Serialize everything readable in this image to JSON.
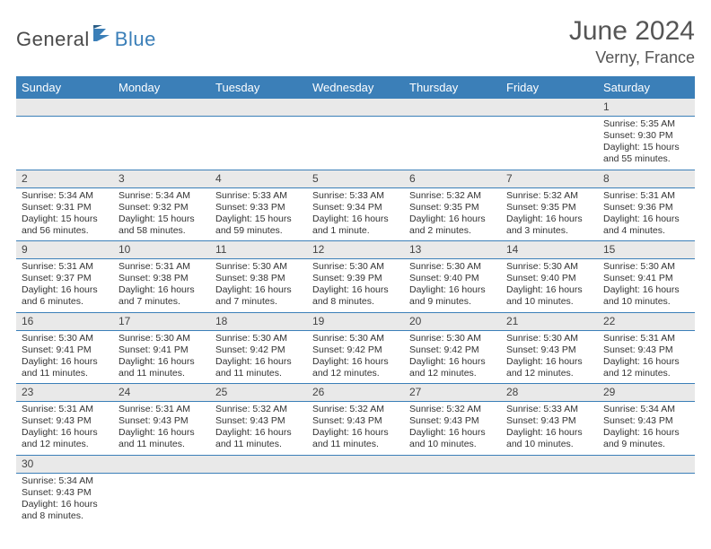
{
  "brand": {
    "part1": "General",
    "part2": "Blue"
  },
  "title": "June 2024",
  "location": "Verny, France",
  "colors": {
    "header_bg": "#3b7fb8",
    "header_fg": "#ffffff",
    "daynum_bg": "#e9e9e9",
    "border": "#3b7fb8",
    "text": "#333333",
    "background": "#ffffff"
  },
  "weekdays": [
    "Sunday",
    "Monday",
    "Tuesday",
    "Wednesday",
    "Thursday",
    "Friday",
    "Saturday"
  ],
  "weeks": [
    {
      "days": [
        {
          "empty": true
        },
        {
          "empty": true
        },
        {
          "empty": true
        },
        {
          "empty": true
        },
        {
          "empty": true
        },
        {
          "empty": true
        },
        {
          "num": "1",
          "sunrise": "Sunrise: 5:35 AM",
          "sunset": "Sunset: 9:30 PM",
          "daylight": "Daylight: 15 hours and 55 minutes."
        }
      ]
    },
    {
      "days": [
        {
          "num": "2",
          "sunrise": "Sunrise: 5:34 AM",
          "sunset": "Sunset: 9:31 PM",
          "daylight": "Daylight: 15 hours and 56 minutes."
        },
        {
          "num": "3",
          "sunrise": "Sunrise: 5:34 AM",
          "sunset": "Sunset: 9:32 PM",
          "daylight": "Daylight: 15 hours and 58 minutes."
        },
        {
          "num": "4",
          "sunrise": "Sunrise: 5:33 AM",
          "sunset": "Sunset: 9:33 PM",
          "daylight": "Daylight: 15 hours and 59 minutes."
        },
        {
          "num": "5",
          "sunrise": "Sunrise: 5:33 AM",
          "sunset": "Sunset: 9:34 PM",
          "daylight": "Daylight: 16 hours and 1 minute."
        },
        {
          "num": "6",
          "sunrise": "Sunrise: 5:32 AM",
          "sunset": "Sunset: 9:35 PM",
          "daylight": "Daylight: 16 hours and 2 minutes."
        },
        {
          "num": "7",
          "sunrise": "Sunrise: 5:32 AM",
          "sunset": "Sunset: 9:35 PM",
          "daylight": "Daylight: 16 hours and 3 minutes."
        },
        {
          "num": "8",
          "sunrise": "Sunrise: 5:31 AM",
          "sunset": "Sunset: 9:36 PM",
          "daylight": "Daylight: 16 hours and 4 minutes."
        }
      ]
    },
    {
      "days": [
        {
          "num": "9",
          "sunrise": "Sunrise: 5:31 AM",
          "sunset": "Sunset: 9:37 PM",
          "daylight": "Daylight: 16 hours and 6 minutes."
        },
        {
          "num": "10",
          "sunrise": "Sunrise: 5:31 AM",
          "sunset": "Sunset: 9:38 PM",
          "daylight": "Daylight: 16 hours and 7 minutes."
        },
        {
          "num": "11",
          "sunrise": "Sunrise: 5:30 AM",
          "sunset": "Sunset: 9:38 PM",
          "daylight": "Daylight: 16 hours and 7 minutes."
        },
        {
          "num": "12",
          "sunrise": "Sunrise: 5:30 AM",
          "sunset": "Sunset: 9:39 PM",
          "daylight": "Daylight: 16 hours and 8 minutes."
        },
        {
          "num": "13",
          "sunrise": "Sunrise: 5:30 AM",
          "sunset": "Sunset: 9:40 PM",
          "daylight": "Daylight: 16 hours and 9 minutes."
        },
        {
          "num": "14",
          "sunrise": "Sunrise: 5:30 AM",
          "sunset": "Sunset: 9:40 PM",
          "daylight": "Daylight: 16 hours and 10 minutes."
        },
        {
          "num": "15",
          "sunrise": "Sunrise: 5:30 AM",
          "sunset": "Sunset: 9:41 PM",
          "daylight": "Daylight: 16 hours and 10 minutes."
        }
      ]
    },
    {
      "days": [
        {
          "num": "16",
          "sunrise": "Sunrise: 5:30 AM",
          "sunset": "Sunset: 9:41 PM",
          "daylight": "Daylight: 16 hours and 11 minutes."
        },
        {
          "num": "17",
          "sunrise": "Sunrise: 5:30 AM",
          "sunset": "Sunset: 9:41 PM",
          "daylight": "Daylight: 16 hours and 11 minutes."
        },
        {
          "num": "18",
          "sunrise": "Sunrise: 5:30 AM",
          "sunset": "Sunset: 9:42 PM",
          "daylight": "Daylight: 16 hours and 11 minutes."
        },
        {
          "num": "19",
          "sunrise": "Sunrise: 5:30 AM",
          "sunset": "Sunset: 9:42 PM",
          "daylight": "Daylight: 16 hours and 12 minutes."
        },
        {
          "num": "20",
          "sunrise": "Sunrise: 5:30 AM",
          "sunset": "Sunset: 9:42 PM",
          "daylight": "Daylight: 16 hours and 12 minutes."
        },
        {
          "num": "21",
          "sunrise": "Sunrise: 5:30 AM",
          "sunset": "Sunset: 9:43 PM",
          "daylight": "Daylight: 16 hours and 12 minutes."
        },
        {
          "num": "22",
          "sunrise": "Sunrise: 5:31 AM",
          "sunset": "Sunset: 9:43 PM",
          "daylight": "Daylight: 16 hours and 12 minutes."
        }
      ]
    },
    {
      "days": [
        {
          "num": "23",
          "sunrise": "Sunrise: 5:31 AM",
          "sunset": "Sunset: 9:43 PM",
          "daylight": "Daylight: 16 hours and 12 minutes."
        },
        {
          "num": "24",
          "sunrise": "Sunrise: 5:31 AM",
          "sunset": "Sunset: 9:43 PM",
          "daylight": "Daylight: 16 hours and 11 minutes."
        },
        {
          "num": "25",
          "sunrise": "Sunrise: 5:32 AM",
          "sunset": "Sunset: 9:43 PM",
          "daylight": "Daylight: 16 hours and 11 minutes."
        },
        {
          "num": "26",
          "sunrise": "Sunrise: 5:32 AM",
          "sunset": "Sunset: 9:43 PM",
          "daylight": "Daylight: 16 hours and 11 minutes."
        },
        {
          "num": "27",
          "sunrise": "Sunrise: 5:32 AM",
          "sunset": "Sunset: 9:43 PM",
          "daylight": "Daylight: 16 hours and 10 minutes."
        },
        {
          "num": "28",
          "sunrise": "Sunrise: 5:33 AM",
          "sunset": "Sunset: 9:43 PM",
          "daylight": "Daylight: 16 hours and 10 minutes."
        },
        {
          "num": "29",
          "sunrise": "Sunrise: 5:34 AM",
          "sunset": "Sunset: 9:43 PM",
          "daylight": "Daylight: 16 hours and 9 minutes."
        }
      ]
    },
    {
      "days": [
        {
          "num": "30",
          "sunrise": "Sunrise: 5:34 AM",
          "sunset": "Sunset: 9:43 PM",
          "daylight": "Daylight: 16 hours and 8 minutes."
        },
        {
          "empty": true
        },
        {
          "empty": true
        },
        {
          "empty": true
        },
        {
          "empty": true
        },
        {
          "empty": true
        },
        {
          "empty": true
        }
      ]
    }
  ]
}
